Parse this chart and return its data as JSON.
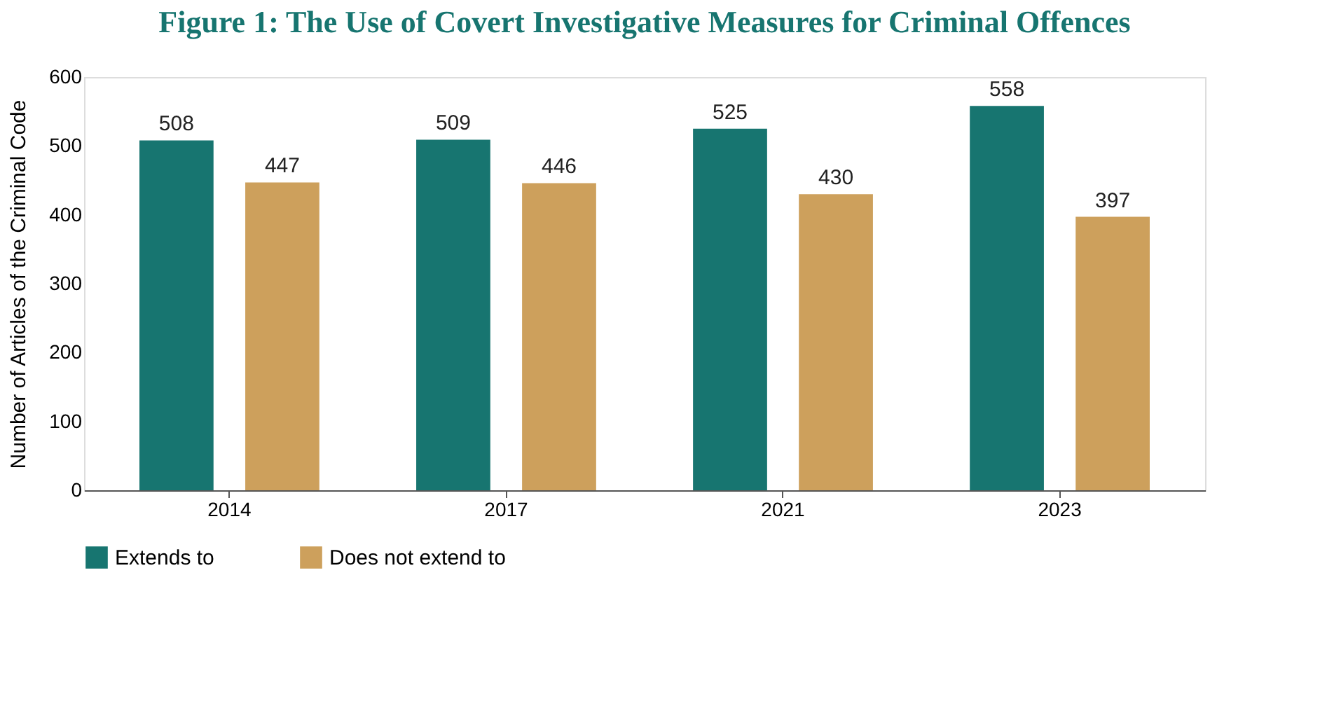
{
  "chart_data": {
    "type": "bar",
    "title": "Figure 1: The Use of Covert Investigative Measures for Criminal Offences",
    "ylabel": "Number of Articles of the Criminal Code",
    "categories": [
      "2014",
      "2017",
      "2021",
      "2023"
    ],
    "series": [
      {
        "name": "Extends to",
        "color": "#177570",
        "values": [
          508,
          509,
          525,
          558
        ]
      },
      {
        "name": "Does not extend to",
        "color": "#cda05c",
        "values": [
          447,
          446,
          430,
          397
        ]
      }
    ],
    "ylim": [
      0,
      600
    ],
    "yticks": [
      0,
      100,
      200,
      300,
      400,
      500,
      600
    ],
    "grid": false,
    "legend": "bottom",
    "data_labels": true
  }
}
